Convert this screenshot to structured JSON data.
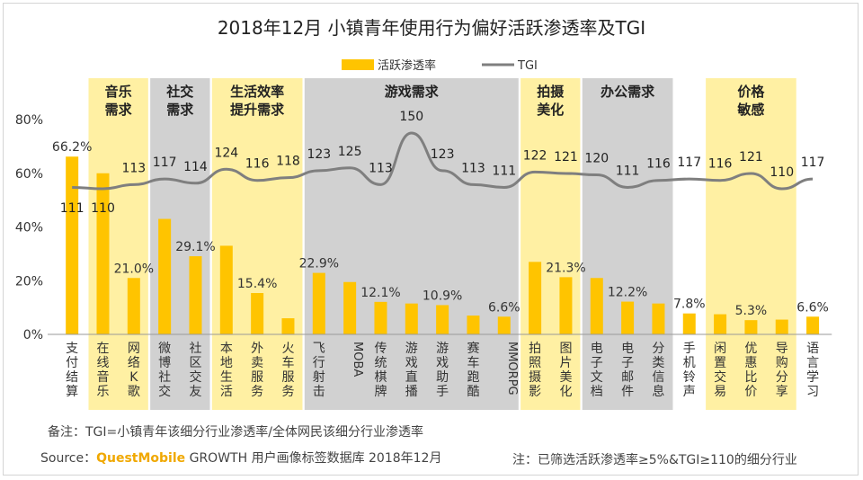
{
  "chart_data": {
    "type": "bar",
    "title": "2018年12月 小镇青年使用行为偏好活跃渗透率及TGI",
    "legend": [
      "活跃渗透率",
      "TGI"
    ],
    "legend_position": "top-center",
    "ylim": [
      0,
      80
    ],
    "y_ticks": [
      "0%",
      "20%",
      "40%",
      "60%",
      "80%"
    ],
    "colors": {
      "bar": "#ffc400",
      "line": "#7f7f7f",
      "group_yellow": "#fff0a3",
      "group_gray": "#d1d1d1"
    },
    "categories": [
      "支付结算",
      "在线音乐",
      "网络K歌",
      "微博社交",
      "社区交友",
      "本地生活",
      "外卖服务",
      "火车服务",
      "飞行射击",
      "MOBA",
      "传统棋牌",
      "游戏直播",
      "游戏助手",
      "赛车跑酷",
      "MMORPG",
      "拍照摄影",
      "图片美化",
      "电子文档",
      "电子邮件",
      "分类信息",
      "手机铃声",
      "闲置交易",
      "优惠比价",
      "导购分享",
      "语言学习"
    ],
    "category_lines": [
      [
        "支",
        "付",
        "结",
        "算"
      ],
      [
        "在",
        "线",
        "音",
        "乐"
      ],
      [
        "网",
        "络",
        "K",
        "歌"
      ],
      [
        "微",
        "博",
        "社",
        "交"
      ],
      [
        "社",
        "区",
        "交",
        "友"
      ],
      [
        "本",
        "地",
        "生",
        "活"
      ],
      [
        "外",
        "卖",
        "服",
        "务"
      ],
      [
        "火",
        "车",
        "服",
        "务"
      ],
      [
        "飞",
        "行",
        "射",
        "击"
      ],
      [
        "MOBA"
      ],
      [
        "传",
        "统",
        "棋",
        "牌"
      ],
      [
        "游",
        "戏",
        "直",
        "播"
      ],
      [
        "游",
        "戏",
        "助",
        "手"
      ],
      [
        "赛",
        "车",
        "跑",
        "酷"
      ],
      [
        "MMORPG"
      ],
      [
        "拍",
        "照",
        "摄",
        "影"
      ],
      [
        "图",
        "片",
        "美",
        "化"
      ],
      [
        "电",
        "子",
        "文",
        "档"
      ],
      [
        "电",
        "子",
        "邮",
        "件"
      ],
      [
        "分",
        "类",
        "信",
        "息"
      ],
      [
        "手",
        "机",
        "铃",
        "声"
      ],
      [
        "闲",
        "置",
        "交",
        "易"
      ],
      [
        "优",
        "惠",
        "比",
        "价"
      ],
      [
        "导",
        "购",
        "分",
        "享"
      ],
      [
        "语",
        "言",
        "学",
        "习"
      ]
    ],
    "series": [
      {
        "name": "活跃渗透率",
        "type": "bar",
        "unit": "%",
        "values": [
          66.2,
          60.0,
          21.0,
          43.0,
          29.1,
          33.0,
          15.4,
          6.0,
          22.9,
          19.5,
          12.1,
          11.5,
          10.9,
          7.0,
          6.6,
          27.0,
          21.3,
          21.0,
          12.2,
          11.5,
          7.8,
          7.5,
          5.3,
          5.5,
          6.6
        ],
        "labels": [
          "66.2%",
          "",
          "21.0%",
          "",
          "29.1%",
          "",
          "15.4%",
          "",
          "22.9%",
          "",
          "12.1%",
          "",
          "10.9%",
          "",
          "6.6%",
          "",
          "21.3%",
          "",
          "12.2%",
          "",
          "7.8%",
          "",
          "5.3%",
          "",
          "6.6%"
        ]
      },
      {
        "name": "TGI",
        "type": "line",
        "values": [
          111,
          110,
          113,
          117,
          114,
          124,
          116,
          118,
          123,
          125,
          113,
          150,
          123,
          113,
          111,
          122,
          121,
          120,
          111,
          116,
          117,
          116,
          121,
          110,
          117
        ],
        "labels": [
          "111",
          "110",
          "113",
          "117",
          "114",
          "124",
          "116",
          "118",
          "123",
          "125",
          "113",
          "150",
          "123",
          "113",
          "111",
          "122",
          "121",
          "120",
          "111",
          "116",
          "117",
          "116",
          "121",
          "110",
          "117"
        ]
      }
    ],
    "groups": [
      {
        "name": [
          "音乐",
          "需求"
        ],
        "start": 1,
        "end": 2,
        "color": "yellow"
      },
      {
        "name": [
          "社交",
          "需求"
        ],
        "start": 3,
        "end": 4,
        "color": "gray"
      },
      {
        "name": [
          "生活效率",
          "提升需求"
        ],
        "start": 5,
        "end": 7,
        "color": "yellow"
      },
      {
        "name": [
          "游戏需求"
        ],
        "start": 8,
        "end": 14,
        "color": "gray"
      },
      {
        "name": [
          "拍摄",
          "美化"
        ],
        "start": 15,
        "end": 16,
        "color": "yellow"
      },
      {
        "name": [
          "办公需求"
        ],
        "start": 17,
        "end": 19,
        "color": "gray"
      },
      {
        "name": [
          "价格",
          "敏感"
        ],
        "start": 21,
        "end": 23,
        "color": "yellow"
      }
    ]
  },
  "footnote": "备注：TGI=小镇青年该细分行业渗透率/全体网民该细分行业渗透率",
  "source_prefix": "Source：",
  "source_brand": "QuestMobile",
  "source_suffix": " GROWTH 用户画像标签数据库 2018年12月",
  "filter_note": "注：已筛选活跃渗透率≥5%&TGI≥110的细分行业"
}
